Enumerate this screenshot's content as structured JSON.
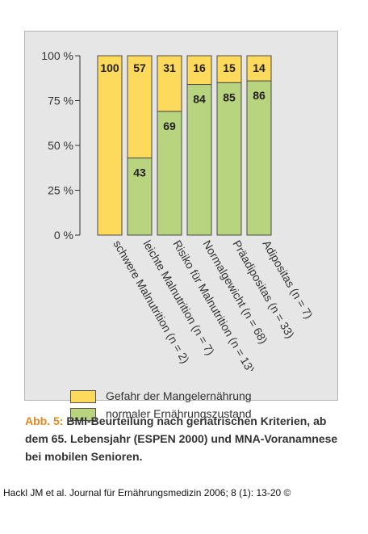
{
  "chart_data": {
    "type": "bar",
    "stacked": true,
    "categories": [
      "schwere Malnutrition (n = 2)",
      "leichte Malnutrition (n = 7)",
      "Risiko für Malnutrition (n = 13)",
      "Normalgewicht (n = 68)",
      "Präadipositas (n = 33)",
      "Adipositas (n = 7)"
    ],
    "series": [
      {
        "name": "normaler Ernährungszustand",
        "color": "#b8d47e",
        "values": [
          0,
          43,
          69,
          84,
          85,
          86
        ],
        "labels": [
          "",
          "43",
          "69",
          "84",
          "85",
          "86"
        ]
      },
      {
        "name": "Gefahr der Mangelernährung",
        "color": "#fdd95c",
        "values": [
          100,
          57,
          31,
          16,
          15,
          14
        ],
        "labels": [
          "100",
          "57",
          "31",
          "16",
          "15",
          "14"
        ]
      }
    ],
    "yticks": [
      "0 %",
      "25 %",
      "50 %",
      "75 %",
      "100 %"
    ],
    "ylim": [
      0,
      100
    ],
    "legend": "bottom-left",
    "grid": false
  },
  "caption": {
    "lead": "Abb. 5:",
    "text": "BMI-Beurteilung nach geriatrischen Kriterien, ab dem 65. Lebensjahr (ESPEN 2000) und MNA-Voranamnese bei mobilen Senioren."
  },
  "source_line": "Hackl JM et al. Journal für Ernährungsmedizin 2006; 8 (1): 13-20 ©"
}
